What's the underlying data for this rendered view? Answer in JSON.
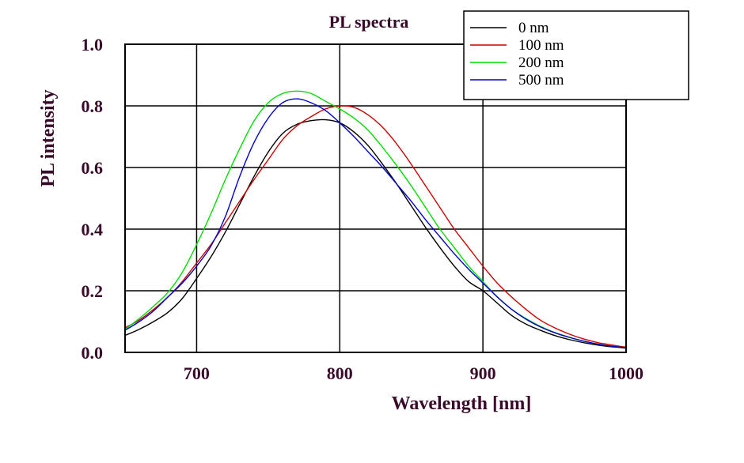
{
  "chart_data": {
    "type": "line",
    "title": "PL spectra",
    "xlabel": "Wavelength [nm]",
    "ylabel": "PL intensity",
    "xlim": [
      650,
      1000
    ],
    "ylim": [
      0.0,
      1.0
    ],
    "xticks": [
      700,
      800,
      900,
      1000
    ],
    "xtick_labels": [
      "700",
      "800",
      "900",
      "1000"
    ],
    "yticks": [
      0.0,
      0.2,
      0.4,
      0.6,
      0.8,
      1.0
    ],
    "ytick_labels": [
      "0.0",
      "0.2",
      "0.4",
      "0.6",
      "0.8",
      "1.0"
    ],
    "grid": true,
    "legend_position": "top-right",
    "x": [
      650,
      660,
      670,
      680,
      690,
      700,
      710,
      720,
      730,
      740,
      750,
      760,
      770,
      780,
      790,
      800,
      810,
      820,
      830,
      840,
      850,
      860,
      870,
      880,
      890,
      900,
      910,
      920,
      930,
      940,
      950,
      960,
      970,
      980,
      990,
      1000
    ],
    "series": [
      {
        "name": "0 nm",
        "color": "#000000",
        "values": [
          0.055,
          0.075,
          0.1,
          0.13,
          0.175,
          0.24,
          0.31,
          0.39,
          0.48,
          0.57,
          0.65,
          0.71,
          0.74,
          0.752,
          0.755,
          0.745,
          0.715,
          0.67,
          0.61,
          0.545,
          0.475,
          0.405,
          0.34,
          0.28,
          0.23,
          0.2,
          0.16,
          0.12,
          0.092,
          0.072,
          0.055,
          0.042,
          0.032,
          0.024,
          0.018,
          0.014
        ]
      },
      {
        "name": "100 nm",
        "color": "#cc0000",
        "values": [
          0.08,
          0.105,
          0.14,
          0.18,
          0.23,
          0.29,
          0.35,
          0.42,
          0.49,
          0.56,
          0.625,
          0.69,
          0.735,
          0.765,
          0.79,
          0.8,
          0.795,
          0.77,
          0.73,
          0.675,
          0.61,
          0.54,
          0.47,
          0.4,
          0.34,
          0.28,
          0.225,
          0.18,
          0.14,
          0.105,
          0.08,
          0.06,
          0.044,
          0.032,
          0.024,
          0.017
        ]
      },
      {
        "name": "200 nm",
        "color": "#00dd00",
        "values": [
          0.075,
          0.11,
          0.15,
          0.195,
          0.26,
          0.35,
          0.45,
          0.56,
          0.66,
          0.75,
          0.81,
          0.84,
          0.848,
          0.84,
          0.815,
          0.79,
          0.76,
          0.72,
          0.665,
          0.605,
          0.54,
          0.47,
          0.4,
          0.34,
          0.28,
          0.23,
          0.18,
          0.14,
          0.11,
          0.085,
          0.065,
          0.05,
          0.037,
          0.027,
          0.02,
          0.015
        ]
      },
      {
        "name": "500 nm",
        "color": "#0000cc",
        "values": [
          0.072,
          0.1,
          0.135,
          0.18,
          0.225,
          0.28,
          0.345,
          0.44,
          0.57,
          0.68,
          0.76,
          0.81,
          0.823,
          0.81,
          0.785,
          0.745,
          0.7,
          0.65,
          0.6,
          0.545,
          0.49,
          0.43,
          0.375,
          0.32,
          0.27,
          0.225,
          0.18,
          0.14,
          0.108,
          0.083,
          0.064,
          0.049,
          0.037,
          0.027,
          0.02,
          0.015
        ]
      }
    ]
  }
}
